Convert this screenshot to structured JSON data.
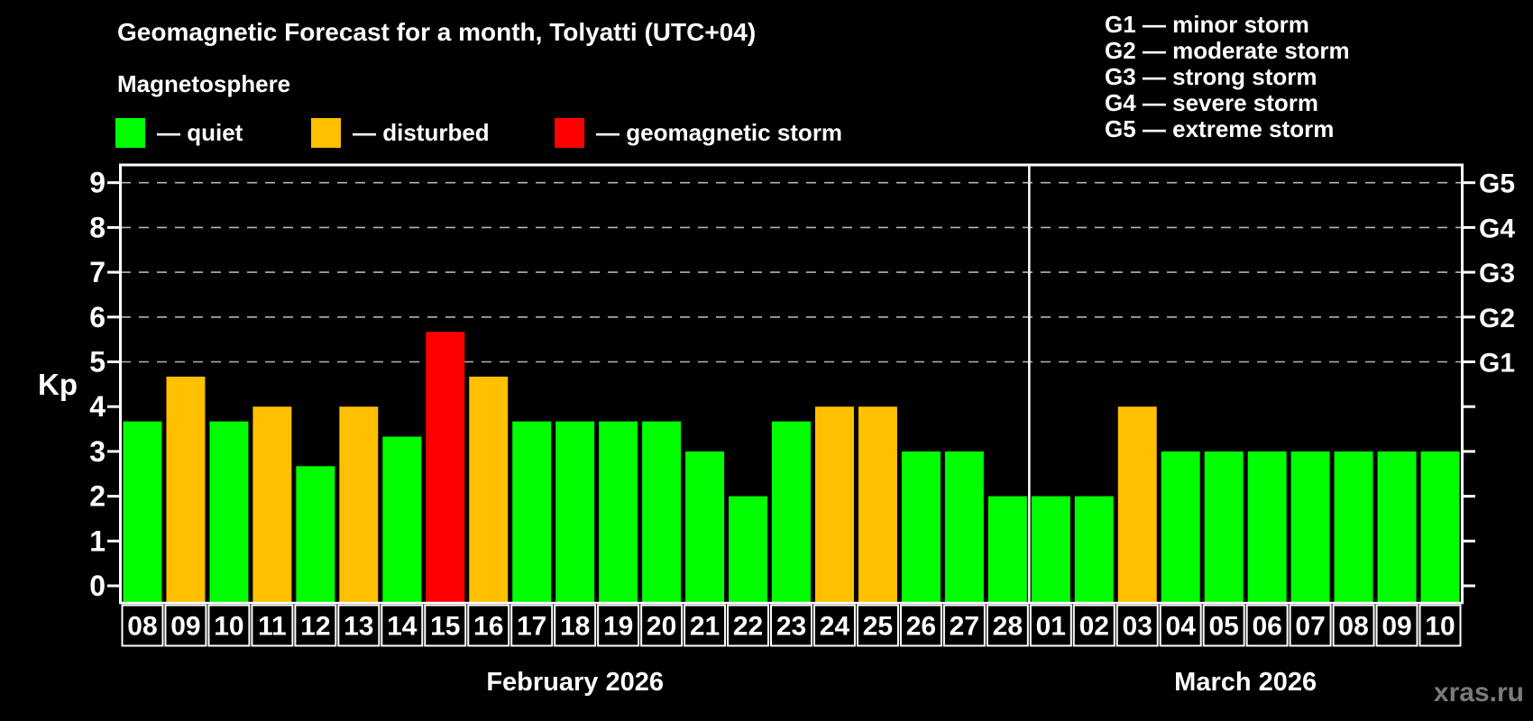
{
  "header": {
    "title": "Geomagnetic Forecast for a month, Tolyatti (UTC+04)",
    "subtitle": "Magnetosphere"
  },
  "legend": {
    "items": [
      {
        "name": "quiet",
        "label": "— quiet",
        "color": "#00ff00"
      },
      {
        "name": "disturbed",
        "label": "— disturbed",
        "color": "#ffc000"
      },
      {
        "name": "storm",
        "label": "— geomagnetic storm",
        "color": "#ff0000"
      }
    ]
  },
  "g_scale_legend": {
    "lines": [
      "G1 — minor storm",
      "G2 — moderate storm",
      "G3 — strong storm",
      "G4 — severe storm",
      "G5 — extreme storm"
    ]
  },
  "watermark": "xras.ru",
  "chart_data": {
    "type": "bar",
    "ylabel": "Kp",
    "ylim": [
      0,
      9.4
    ],
    "yticks": [
      0,
      1,
      2,
      3,
      4,
      5,
      6,
      7,
      8,
      9
    ],
    "gridline_values": [
      5,
      6,
      7,
      8,
      9
    ],
    "grid": true,
    "legend_position": "top",
    "right_axis_labels": [
      {
        "code": "G1",
        "kp": 5
      },
      {
        "code": "G2",
        "kp": 6
      },
      {
        "code": "G3",
        "kp": 7
      },
      {
        "code": "G4",
        "kp": 8
      },
      {
        "code": "G5",
        "kp": 9
      }
    ],
    "colors": {
      "quiet": "#00ff00",
      "disturbed": "#ffc000",
      "storm": "#ff0000"
    },
    "months": [
      {
        "label": "February 2026",
        "days": [
          {
            "date": "08",
            "kp": 3.67,
            "state": "quiet"
          },
          {
            "date": "09",
            "kp": 4.67,
            "state": "disturbed"
          },
          {
            "date": "10",
            "kp": 3.67,
            "state": "quiet"
          },
          {
            "date": "11",
            "kp": 4.0,
            "state": "disturbed"
          },
          {
            "date": "12",
            "kp": 2.67,
            "state": "quiet"
          },
          {
            "date": "13",
            "kp": 4.0,
            "state": "disturbed"
          },
          {
            "date": "14",
            "kp": 3.33,
            "state": "quiet"
          },
          {
            "date": "15",
            "kp": 5.67,
            "state": "storm"
          },
          {
            "date": "16",
            "kp": 4.67,
            "state": "disturbed"
          },
          {
            "date": "17",
            "kp": 3.67,
            "state": "quiet"
          },
          {
            "date": "18",
            "kp": 3.67,
            "state": "quiet"
          },
          {
            "date": "19",
            "kp": 3.67,
            "state": "quiet"
          },
          {
            "date": "20",
            "kp": 3.67,
            "state": "quiet"
          },
          {
            "date": "21",
            "kp": 3.0,
            "state": "quiet"
          },
          {
            "date": "22",
            "kp": 2.0,
            "state": "quiet"
          },
          {
            "date": "23",
            "kp": 3.67,
            "state": "quiet"
          },
          {
            "date": "24",
            "kp": 4.0,
            "state": "disturbed"
          },
          {
            "date": "25",
            "kp": 4.0,
            "state": "disturbed"
          },
          {
            "date": "26",
            "kp": 3.0,
            "state": "quiet"
          },
          {
            "date": "27",
            "kp": 3.0,
            "state": "quiet"
          },
          {
            "date": "28",
            "kp": 2.0,
            "state": "quiet"
          }
        ]
      },
      {
        "label": "March 2026",
        "days": [
          {
            "date": "01",
            "kp": 2.0,
            "state": "quiet"
          },
          {
            "date": "02",
            "kp": 2.0,
            "state": "quiet"
          },
          {
            "date": "03",
            "kp": 4.0,
            "state": "disturbed"
          },
          {
            "date": "04",
            "kp": 3.0,
            "state": "quiet"
          },
          {
            "date": "05",
            "kp": 3.0,
            "state": "quiet"
          },
          {
            "date": "06",
            "kp": 3.0,
            "state": "quiet"
          },
          {
            "date": "07",
            "kp": 3.0,
            "state": "quiet"
          },
          {
            "date": "08",
            "kp": 3.0,
            "state": "quiet"
          },
          {
            "date": "09",
            "kp": 3.0,
            "state": "quiet"
          },
          {
            "date": "10",
            "kp": 3.0,
            "state": "quiet"
          }
        ]
      }
    ]
  }
}
